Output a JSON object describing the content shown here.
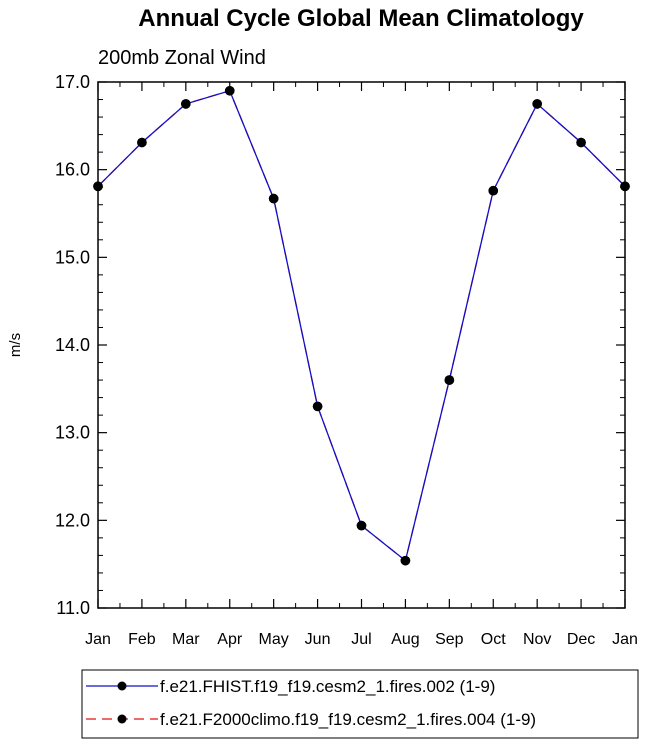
{
  "chart_data": {
    "type": "line",
    "title": "Annual Cycle Global Mean Climatology",
    "subtitle": "200mb Zonal Wind",
    "xlabel": "",
    "ylabel": "m/s",
    "ylim": [
      11.0,
      17.0
    ],
    "yticks": [
      "11.0",
      "12.0",
      "13.0",
      "14.0",
      "15.0",
      "16.0",
      "17.0"
    ],
    "ytick_values": [
      11,
      12,
      13,
      14,
      15,
      16,
      17
    ],
    "categories": [
      "Jan",
      "Feb",
      "Mar",
      "Apr",
      "May",
      "Jun",
      "Jul",
      "Aug",
      "Sep",
      "Oct",
      "Nov",
      "Dec",
      "Jan"
    ],
    "grid": false,
    "legend_position": "bottom",
    "series": [
      {
        "name": "f.e21.FHIST.f19_f19.cesm2_1.fires.002 (1-9)",
        "color": "#1010c8",
        "line_style": "solid",
        "marker": "filled-circle",
        "values": [
          15.81,
          16.31,
          16.75,
          16.9,
          15.67,
          13.3,
          11.94,
          11.54,
          13.6,
          15.76,
          16.75,
          16.31,
          15.81
        ]
      },
      {
        "name": "f.e21.F2000climo.f19_f19.cesm2_1.fires.004 (1-9)",
        "color": "#e01010",
        "line_style": "dashed",
        "marker": "filled-circle",
        "values": [
          15.81,
          16.31,
          16.75,
          16.9,
          15.67,
          13.3,
          11.94,
          11.54,
          13.6,
          15.76,
          16.75,
          16.31,
          15.81
        ]
      }
    ]
  }
}
